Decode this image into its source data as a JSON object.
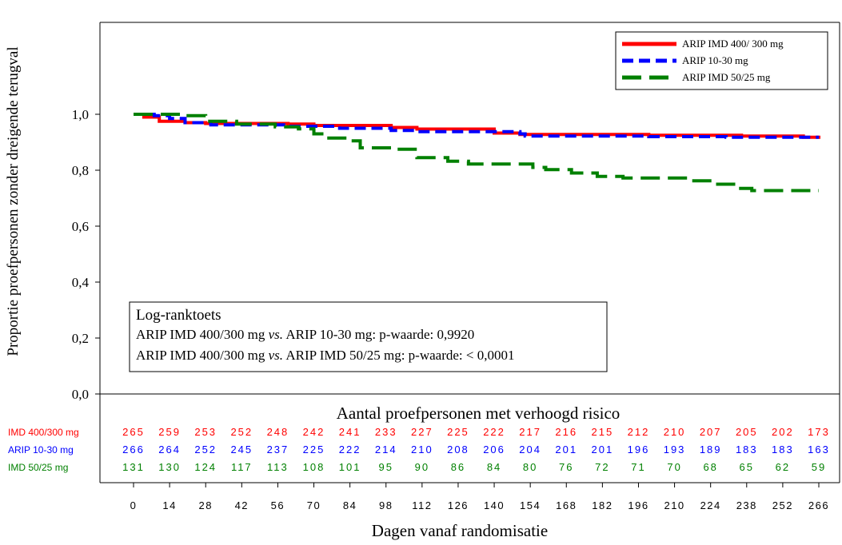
{
  "chart_data": {
    "type": "line",
    "title": "",
    "xlabel": "Dagen vanaf randomisatie",
    "ylabel": "Proportie proefpersonen zonder dreigende terugval",
    "xlim": [
      0,
      266
    ],
    "ylim": [
      0,
      1.0
    ],
    "x_ticks": [
      0,
      14,
      28,
      42,
      56,
      70,
      84,
      98,
      112,
      126,
      140,
      154,
      168,
      182,
      196,
      210,
      224,
      238,
      252,
      266
    ],
    "x_tick_labels": [
      "0",
      "14",
      "28",
      "42",
      "56",
      "70",
      "84",
      "98",
      "112",
      "126",
      "140",
      "154",
      "168",
      "182",
      "196",
      "210",
      "224",
      "238",
      "252",
      "266"
    ],
    "y_ticks": [
      0.0,
      0.2,
      0.4,
      0.6,
      0.8,
      1.0
    ],
    "y_tick_labels": [
      "0,0",
      "0,2",
      "0,4",
      "0,6",
      "0,8",
      "1,0"
    ],
    "grid": false,
    "legend_position": "top-right",
    "series": [
      {
        "name": "ARIP IMD 400/ 300 mg",
        "color": "#ff0000",
        "dash": "solid",
        "points": [
          [
            0,
            1.0
          ],
          [
            4,
            0.99
          ],
          [
            10,
            0.975
          ],
          [
            20,
            0.97
          ],
          [
            28,
            0.967
          ],
          [
            60,
            0.965
          ],
          [
            70,
            0.96
          ],
          [
            100,
            0.953
          ],
          [
            110,
            0.947
          ],
          [
            140,
            0.933
          ],
          [
            150,
            0.928
          ],
          [
            200,
            0.925
          ],
          [
            236,
            0.922
          ],
          [
            260,
            0.918
          ],
          [
            266,
            0.912
          ]
        ]
      },
      {
        "name": "ARIP 10-30 mg",
        "color": "#0000ff",
        "dash": "dashed",
        "points": [
          [
            0,
            1.0
          ],
          [
            8,
            0.995
          ],
          [
            14,
            0.985
          ],
          [
            20,
            0.97
          ],
          [
            30,
            0.962
          ],
          [
            60,
            0.957
          ],
          [
            80,
            0.95
          ],
          [
            100,
            0.942
          ],
          [
            110,
            0.938
          ],
          [
            150,
            0.93
          ],
          [
            152,
            0.922
          ],
          [
            200,
            0.92
          ],
          [
            230,
            0.918
          ],
          [
            266,
            0.918
          ]
        ]
      },
      {
        "name": "ARIP IMD 50/25 mg",
        "color": "#008000",
        "dash": "longdash",
        "points": [
          [
            0,
            1.0
          ],
          [
            20,
            0.995
          ],
          [
            28,
            0.975
          ],
          [
            40,
            0.965
          ],
          [
            55,
            0.955
          ],
          [
            64,
            0.948
          ],
          [
            70,
            0.93
          ],
          [
            74,
            0.915
          ],
          [
            84,
            0.905
          ],
          [
            88,
            0.88
          ],
          [
            100,
            0.875
          ],
          [
            110,
            0.845
          ],
          [
            122,
            0.832
          ],
          [
            130,
            0.822
          ],
          [
            155,
            0.81
          ],
          [
            160,
            0.802
          ],
          [
            170,
            0.79
          ],
          [
            180,
            0.778
          ],
          [
            190,
            0.772
          ],
          [
            215,
            0.762
          ],
          [
            225,
            0.75
          ],
          [
            235,
            0.735
          ],
          [
            240,
            0.727
          ],
          [
            266,
            0.727
          ]
        ]
      }
    ],
    "annotation": {
      "title": "Log-ranktoets",
      "line1_a": "ARIP IMD 400/300 mg ",
      "line1_vs": "vs.",
      "line1_b": " ARIP 10-30 mg: p-waarde: 0,9920",
      "line2_a": "ARIP IMD 400/300 mg ",
      "line2_vs": "vs.",
      "line2_b": " ARIP IMD 50/25 mg: p-waarde: < 0,0001"
    },
    "risk_table": {
      "title": "Aantal proefpersonen met verhoogd risico",
      "rows": [
        {
          "label": "IMD 400/300 mg",
          "color": "#ff0000",
          "values": [
            "265",
            "259",
            "253",
            "252",
            "248",
            "242",
            "241",
            "233",
            "227",
            "225",
            "222",
            "217",
            "216",
            "215",
            "212",
            "210",
            "207",
            "205",
            "202",
            "173"
          ]
        },
        {
          "label": "ARIP 10-30 mg",
          "color": "#0000ff",
          "values": [
            "266",
            "264",
            "252",
            "245",
            "237",
            "225",
            "222",
            "214",
            "210",
            "208",
            "206",
            "204",
            "201",
            "201",
            "196",
            "193",
            "189",
            "183",
            "183",
            "163"
          ]
        },
        {
          "label": "IMD 50/25 mg",
          "color": "#008000",
          "values": [
            "131",
            "130",
            "124",
            "117",
            "113",
            "108",
            "101",
            "95",
            "90",
            "86",
            "84",
            "80",
            "76",
            "72",
            "71",
            "70",
            "68",
            "65",
            "62",
            "59"
          ]
        }
      ]
    }
  }
}
